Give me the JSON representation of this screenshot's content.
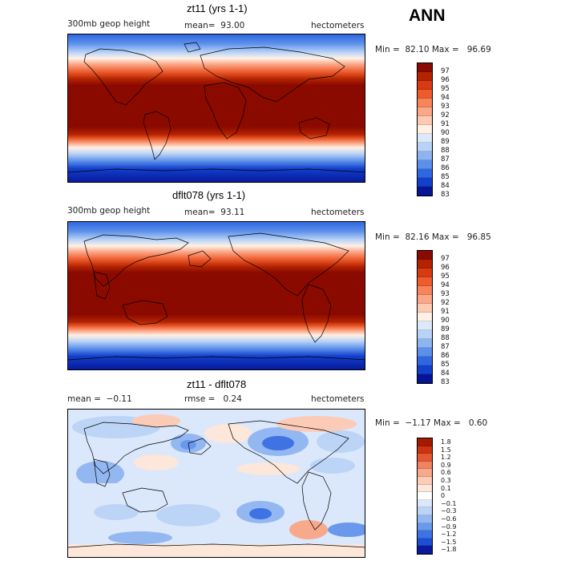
{
  "season": "ANN",
  "panels": [
    {
      "title": "zt11 (yrs 1-1)",
      "left_label": "300mb geop height",
      "mean_label": "mean=",
      "mean_value": "93.00",
      "units": "hectometers",
      "min_label": "Min =",
      "min_value": "82.10",
      "max_label": "Max =",
      "max_value": "96.69",
      "colorbar_ticks": [
        "97",
        "96",
        "95",
        "94",
        "93",
        "92",
        "91",
        "90",
        "89",
        "88",
        "87",
        "86",
        "85",
        "84",
        "83"
      ]
    },
    {
      "title": "dflt078 (yrs 1-1)",
      "left_label": "300mb geop height",
      "mean_label": "mean=",
      "mean_value": "93.11",
      "units": "hectometers",
      "min_label": "Min =",
      "min_value": "82.16",
      "max_label": "Max =",
      "max_value": "96.85",
      "colorbar_ticks": [
        "97",
        "96",
        "95",
        "94",
        "93",
        "92",
        "91",
        "90",
        "89",
        "88",
        "87",
        "86",
        "85",
        "84",
        "83"
      ]
    },
    {
      "title": "zt11 - dflt078",
      "mean_label": "mean =",
      "mean_value": "−0.11",
      "rmse_label": "rmse =",
      "rmse_value": "0.24",
      "units": "hectometers",
      "min_label": "Min =",
      "min_value": "−1.17",
      "max_label": "Max =",
      "max_value": "0.60",
      "colorbar_ticks": [
        "1.8",
        "1.5",
        "1.2",
        "0.9",
        "0.6",
        "0.3",
        "0.1",
        "0",
        "−0.1",
        "−0.3",
        "−0.6",
        "−0.9",
        "−1.2",
        "−1.5",
        "−1.8"
      ]
    }
  ],
  "colors": {
    "field_scale": [
      "#8b0a00",
      "#b32300",
      "#d83a14",
      "#ee5c2e",
      "#f7845a",
      "#fba888",
      "#fccbb3",
      "#fff1e6",
      "#dce9fb",
      "#b9d3f7",
      "#8db4f1",
      "#5b8fea",
      "#2f67e0",
      "#1240cc",
      "#061596"
    ],
    "diff_scale": [
      "#a31a00",
      "#cc3310",
      "#e25a33",
      "#f08360",
      "#f7a98c",
      "#fcccb7",
      "#fde6da",
      "#ffffff",
      "#dbe8fb",
      "#bcd4f6",
      "#93b7f1",
      "#6a98ec",
      "#3f73e3",
      "#1d4dd4",
      "#0a1a9e"
    ]
  }
}
